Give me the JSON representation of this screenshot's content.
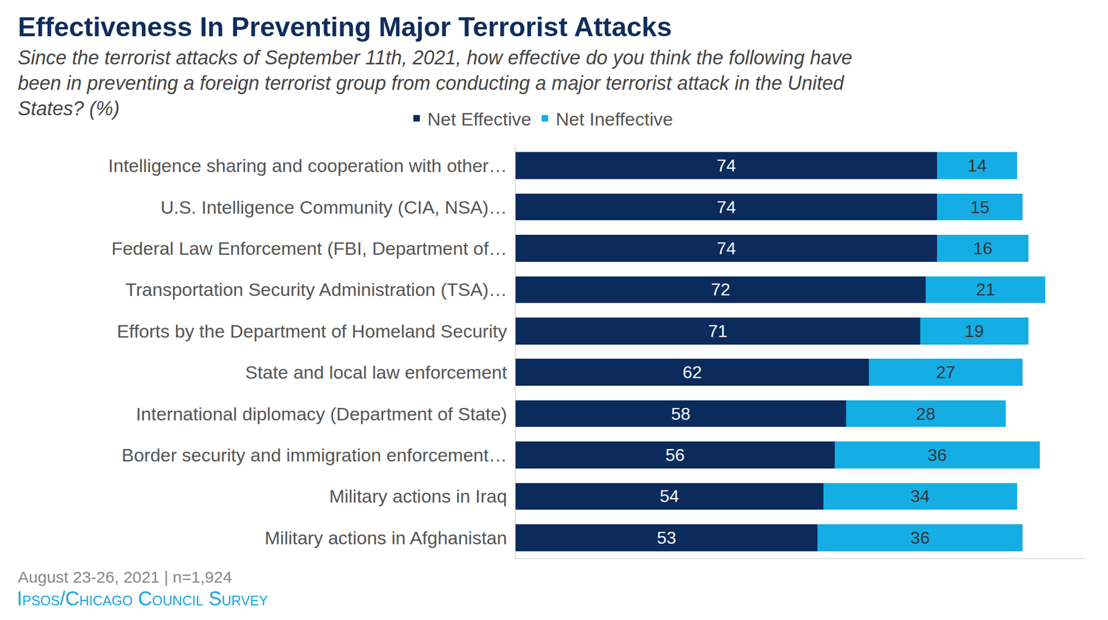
{
  "chart_data": {
    "type": "bar",
    "orientation": "horizontal",
    "stacked": true,
    "data_labels": true,
    "tick_labels": "y",
    "grid": false,
    "legend": "top",
    "title": "Effectiveness In Preventing Major Terrorist Attacks",
    "subtitle": [
      "Since the terrorist attacks of September 11th, 2021, how effective do you think the following have",
      "been in preventing a foreign terrorist group from conducting a major terrorist attack in the United",
      "States? (%)"
    ],
    "categories": [
      "Intelligence sharing and cooperation with other…",
      "U.S. Intelligence Community (CIA, NSA)…",
      "Federal Law Enforcement (FBI, Department of…",
      "Transportation Security Administration (TSA)…",
      "Efforts by the Department of Homeland Security",
      "State and local law enforcement",
      "International diplomacy (Department of State)",
      "Border security and immigration enforcement…",
      "Military actions in Iraq",
      "Military actions in Afghanistan"
    ],
    "series": [
      {
        "name": "Net Effective",
        "color": "#0b2b5c",
        "values": [
          74,
          74,
          74,
          72,
          71,
          62,
          58,
          56,
          54,
          53
        ]
      },
      {
        "name": "Net Ineffective",
        "color": "#14aee4",
        "values": [
          14,
          15,
          16,
          21,
          19,
          27,
          28,
          36,
          34,
          36
        ]
      }
    ],
    "xlim": [
      0,
      100
    ],
    "xticks": [],
    "note": "August 23-26, 2021 | n=1,924",
    "source": "Ipsos/Chicago Council Survey"
  }
}
